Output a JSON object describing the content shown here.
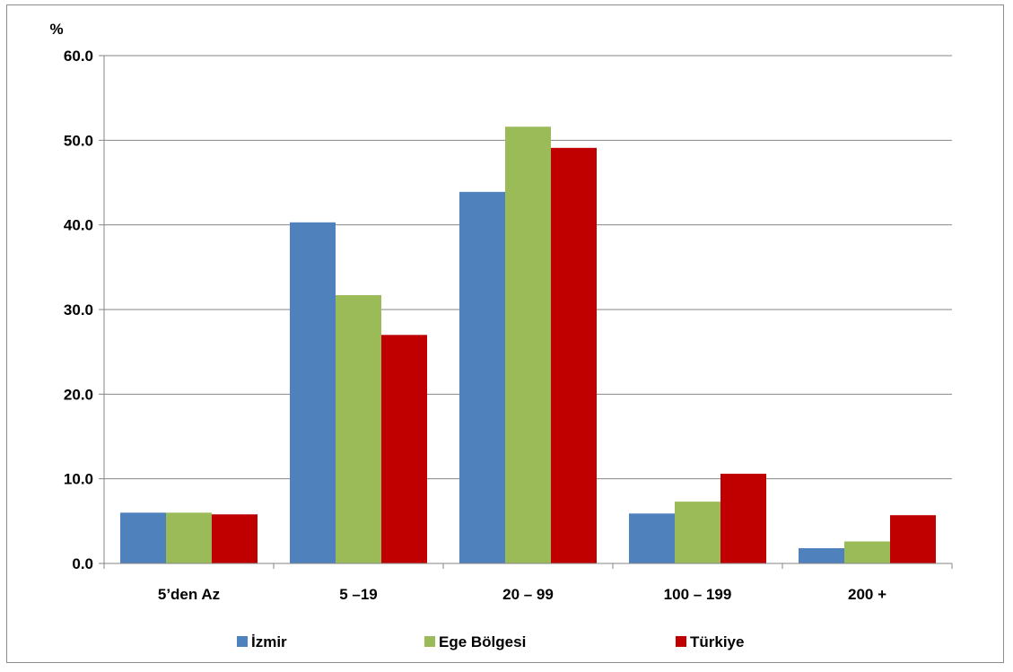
{
  "chart_data": {
    "type": "bar",
    "title": "",
    "xlabel": "",
    "ylabel": "%",
    "ylim": [
      0,
      60
    ],
    "yticks": [
      0,
      10,
      20,
      30,
      40,
      50,
      60
    ],
    "ytick_labels": [
      "0.0",
      "10.0",
      "20.0",
      "30.0",
      "40.0",
      "50.0",
      "60.0"
    ],
    "grid": true,
    "legend_position": "bottom",
    "categories": [
      "5’den Az",
      "5 –19",
      "20 – 99",
      "100 – 199",
      "200 +"
    ],
    "series": [
      {
        "name": "İzmir",
        "color": "#4f81bd",
        "values": [
          6.0,
          40.3,
          43.9,
          5.9,
          1.8
        ]
      },
      {
        "name": "Ege Bölgesi",
        "color": "#9bbb59",
        "values": [
          6.0,
          31.7,
          51.6,
          7.3,
          2.6
        ]
      },
      {
        "name": "Türkiye",
        "color": "#c00000",
        "values": [
          5.8,
          27.0,
          49.1,
          10.6,
          5.7
        ]
      }
    ]
  }
}
